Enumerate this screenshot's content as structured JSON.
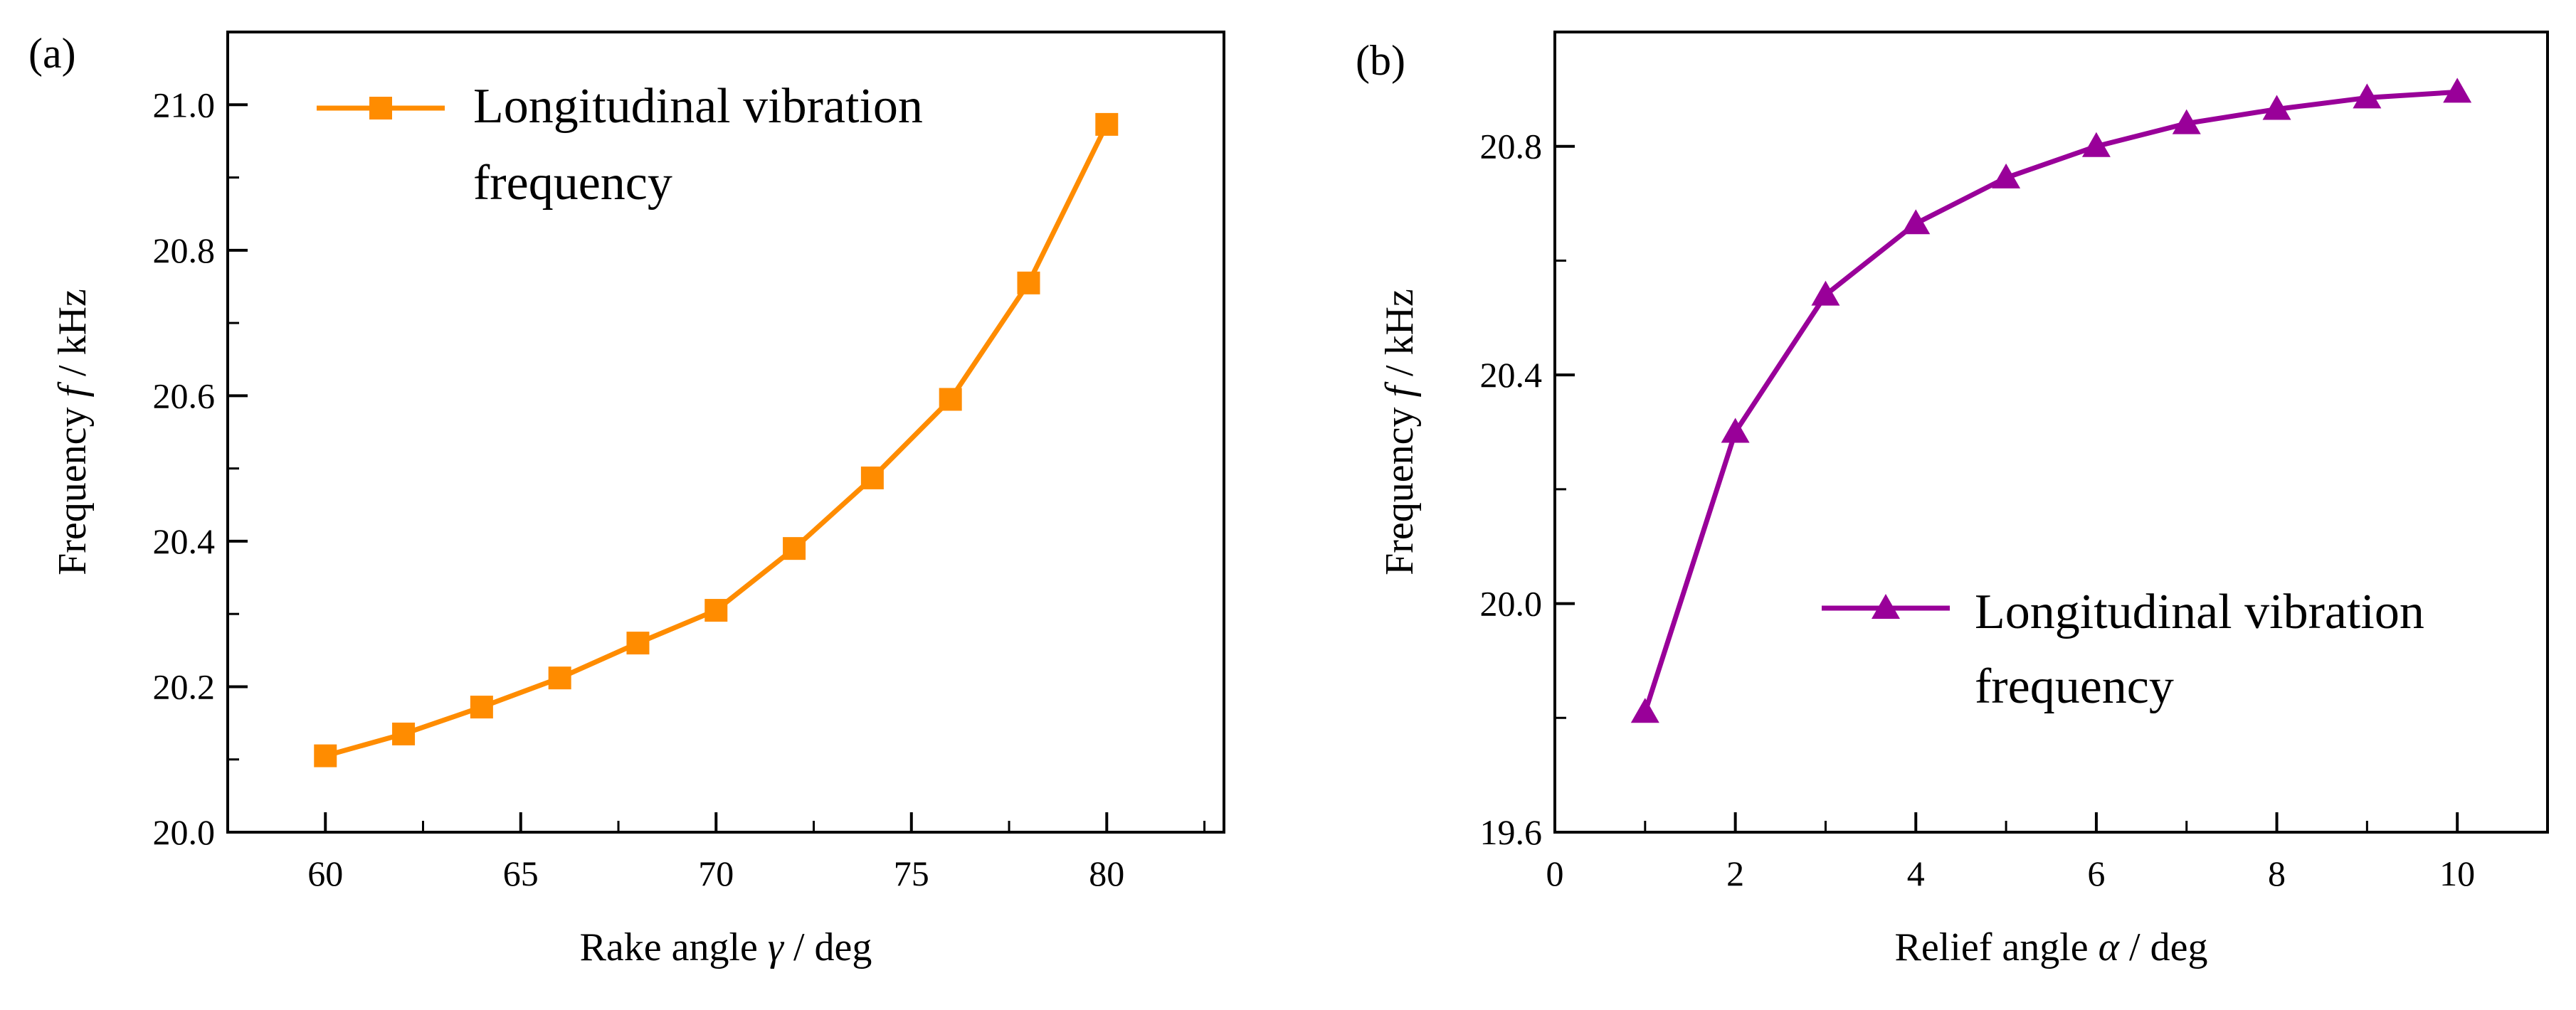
{
  "chart_data": [
    {
      "panel_label": "(a)",
      "type": "line",
      "marker": "square",
      "color": "#FF8C00",
      "x": [
        60,
        62,
        64,
        66,
        68,
        70,
        72,
        74,
        76,
        78,
        80
      ],
      "series": [
        {
          "name": "Longitudinal vibration frequency",
          "values": [
            20.105,
            20.135,
            20.172,
            20.212,
            20.26,
            20.305,
            20.39,
            20.487,
            20.595,
            20.755,
            20.973
          ]
        }
      ],
      "legend_lines": [
        "Longitudinal vibration",
        "frequency"
      ],
      "legend_position": "top-left",
      "xlabel": {
        "pre": "Rake angle ",
        "symbol": "γ",
        "post": " / deg"
      },
      "ylabel": {
        "pre": "Frequency  ",
        "symbol": "f",
        "post": " / kHz"
      },
      "xlim": [
        57.5,
        83
      ],
      "ylim": [
        20.0,
        21.1
      ],
      "xticks": [
        60,
        65,
        70,
        75,
        80
      ],
      "xtick_labels": [
        "60",
        "65",
        "70",
        "75",
        "80"
      ],
      "yticks": [
        20.0,
        20.2,
        20.4,
        20.6,
        20.8,
        21.0
      ],
      "ytick_labels": [
        "20.0",
        "20.2",
        "20.4",
        "20.6",
        "20.8",
        "21.0"
      ],
      "grid": false
    },
    {
      "panel_label": "(b)",
      "type": "line",
      "marker": "triangle",
      "color": "#990099",
      "x": [
        1,
        2,
        3,
        4,
        5,
        6,
        7,
        8,
        9,
        10
      ],
      "series": [
        {
          "name": "Longitudinal vibration frequency",
          "values": [
            19.81,
            20.3,
            20.54,
            20.665,
            20.745,
            20.8,
            20.84,
            20.865,
            20.885,
            20.895
          ]
        }
      ],
      "legend_lines": [
        "Longitudinal vibration",
        "frequency"
      ],
      "legend_position": "lower-right",
      "xlabel": {
        "pre": "Relief angle ",
        "symbol": "α",
        "post": " / deg"
      },
      "ylabel": {
        "pre": "Frequency  ",
        "symbol": "f",
        "post": " / kHz"
      },
      "xlim": [
        0,
        11
      ],
      "ylim": [
        19.6,
        21.0
      ],
      "xticks": [
        0,
        2,
        4,
        6,
        8,
        10
      ],
      "xtick_labels": [
        "0",
        "2",
        "4",
        "6",
        "8",
        "10"
      ],
      "yticks": [
        19.6,
        20.0,
        20.4,
        20.8
      ],
      "ytick_labels": [
        "19.6",
        "20.0",
        "20.4",
        "20.8"
      ],
      "grid": false
    }
  ]
}
